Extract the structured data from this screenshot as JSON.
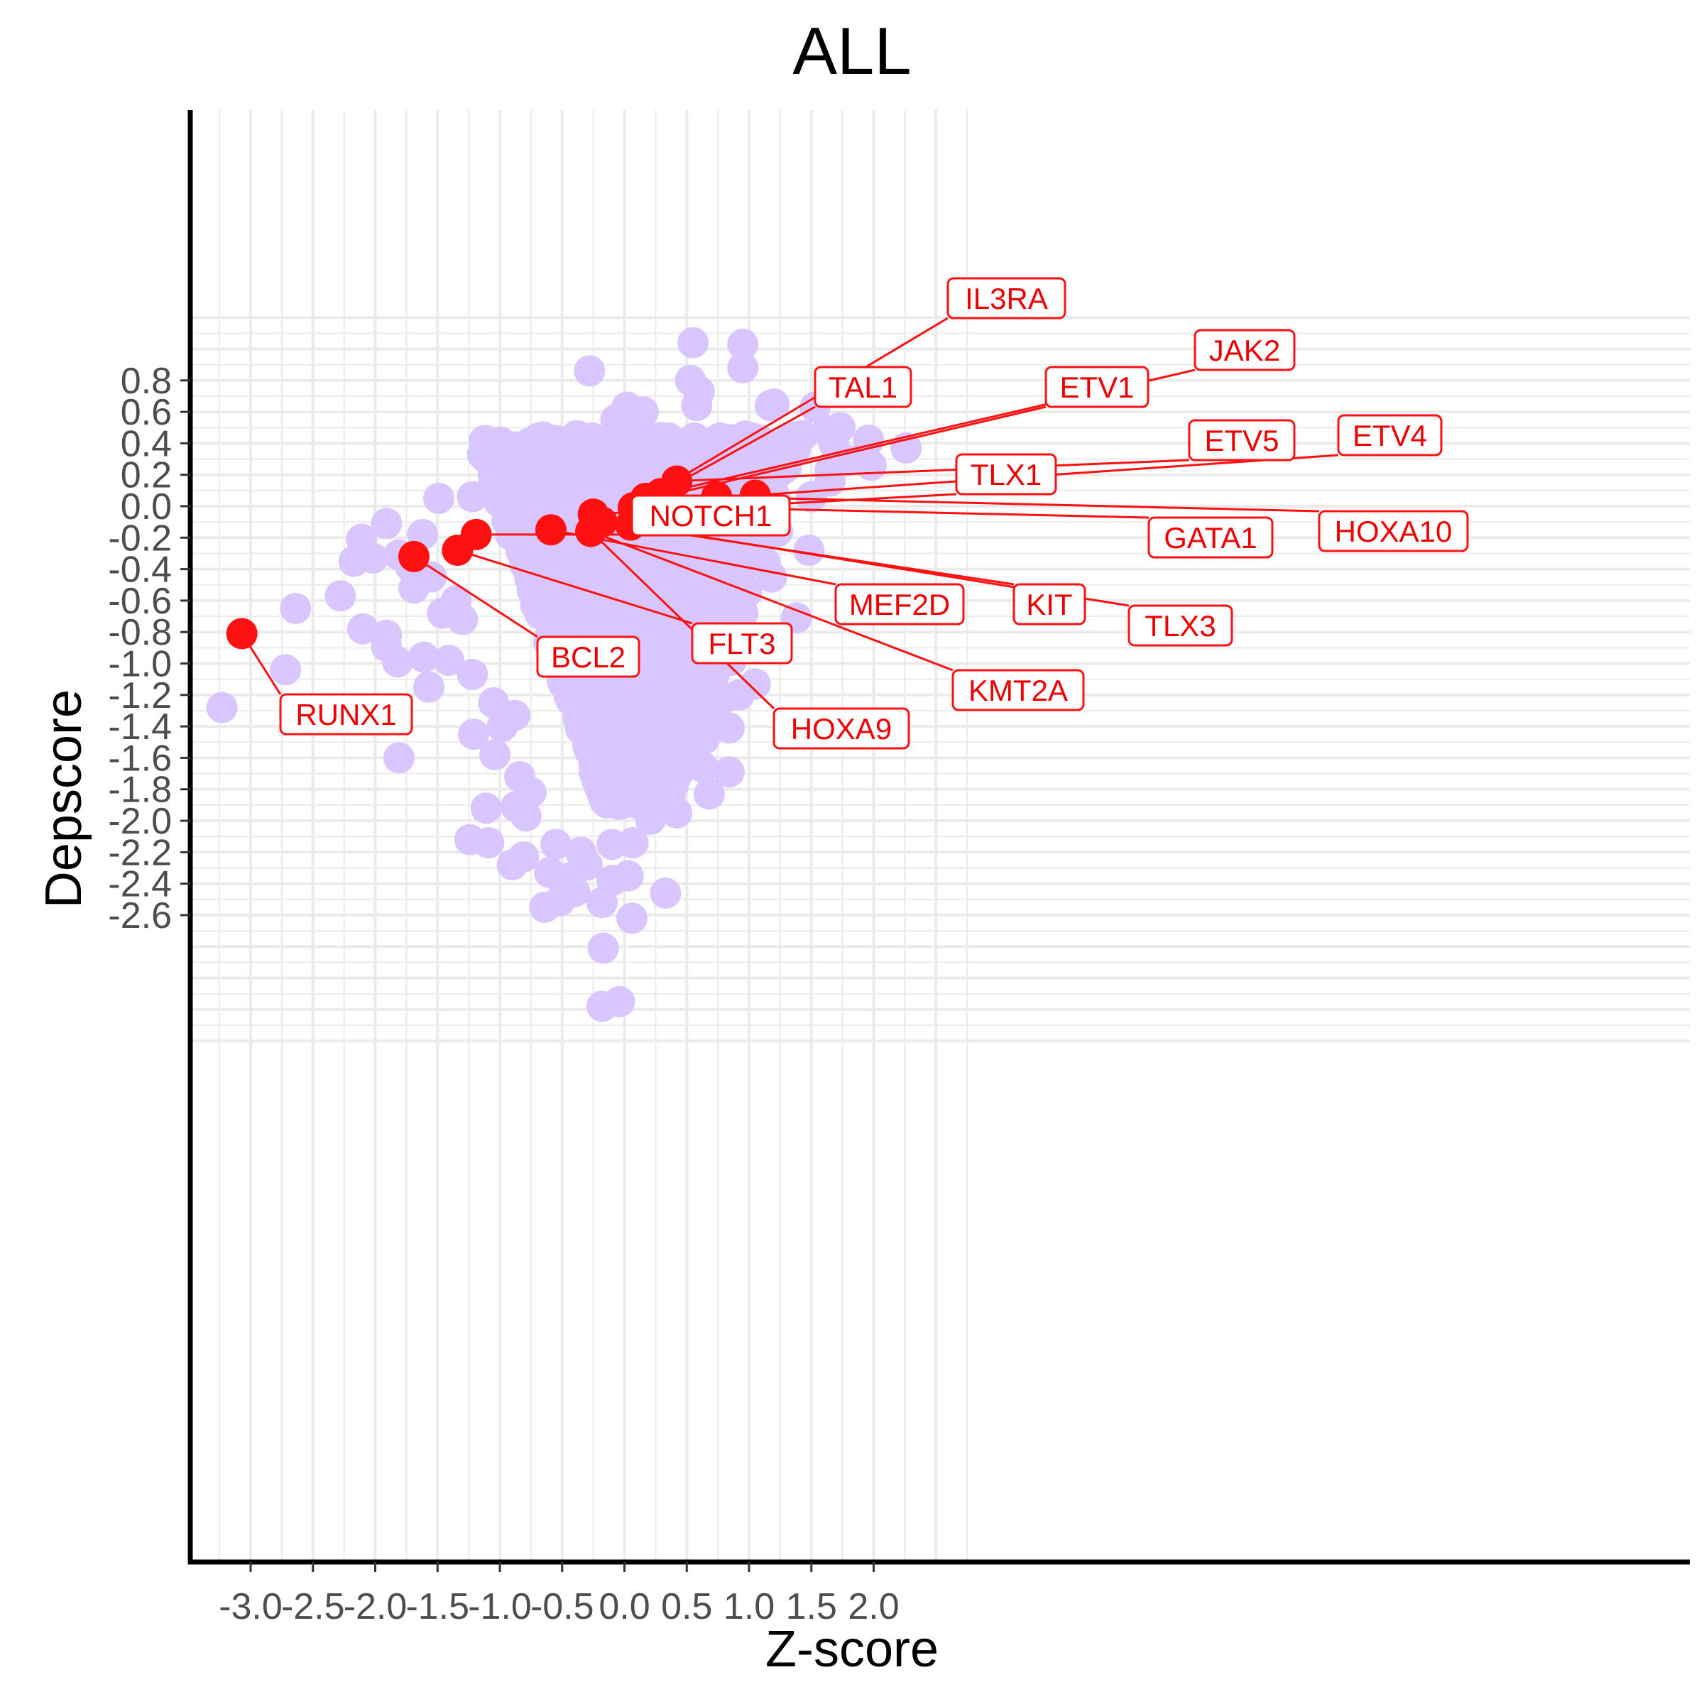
{
  "chart_data": {
    "type": "scatter",
    "title": "ALL",
    "xlabel": "Z-score",
    "ylabel": "Depscore",
    "xlim": [
      -3.35,
      2.75
    ],
    "ylim": [
      -3.35,
      1.27
    ],
    "xticks": [
      -3.0,
      -2.5,
      -2.0,
      -1.5,
      -1.0,
      -0.5,
      0.0,
      0.5,
      1.0,
      1.5,
      2.0
    ],
    "xtick_labels": [
      "-3.0",
      "-2.5",
      "-2.0",
      "-1.5",
      "-1.0",
      "-0.5",
      "0.0",
      "0.5",
      "1.0",
      "1.5",
      "2.0"
    ],
    "yticks": [
      0.8,
      0.6,
      0.4,
      0.2,
      0.0,
      -0.2,
      -0.4,
      -0.6,
      -0.8,
      -1.0,
      -1.2,
      -1.4,
      -1.6,
      -1.8,
      -2.0,
      -2.2,
      -2.4,
      -2.6
    ],
    "ytick_labels": [
      "0.8",
      "0.6",
      "0.4",
      "0.2",
      "0.0",
      "-0.2",
      "-0.4",
      "-0.6",
      "-0.8",
      "-1.0",
      "-1.2",
      "-1.4",
      "-1.6",
      "-1.8",
      "-2.0",
      "-2.2",
      "-2.4",
      "-2.6"
    ],
    "grid": true,
    "colors": {
      "background_points": "#d9c6ff",
      "highlight_points": "#ff1111",
      "label_text": "#ee0000",
      "grid": "#ebebeb",
      "axis": "#000000",
      "tick_label": "#4d4d4d"
    },
    "background_points": [
      {
        "x": 0.55,
        "y": 1.04
      },
      {
        "x": 0.95,
        "y": 1.03
      },
      {
        "x": -0.28,
        "y": 0.86
      },
      {
        "x": 0.95,
        "y": 0.88
      },
      {
        "x": 0.53,
        "y": 0.8
      },
      {
        "x": 0.6,
        "y": 0.73
      },
      {
        "x": 0.58,
        "y": 0.64
      },
      {
        "x": 1.2,
        "y": 0.65
      },
      {
        "x": 1.17,
        "y": 0.64
      },
      {
        "x": 1.53,
        "y": 0.63
      },
      {
        "x": 0.02,
        "y": 0.63
      },
      {
        "x": 0.15,
        "y": 0.6
      },
      {
        "x": -0.07,
        "y": 0.55
      },
      {
        "x": -0.65,
        "y": 0.44
      },
      {
        "x": 1.63,
        "y": 0.48
      },
      {
        "x": 1.73,
        "y": 0.5
      },
      {
        "x": 1.43,
        "y": 0.45
      },
      {
        "x": 1.68,
        "y": 0.4
      },
      {
        "x": 1.96,
        "y": 0.42
      },
      {
        "x": 2.26,
        "y": 0.37
      },
      {
        "x": 1.8,
        "y": 0.29
      },
      {
        "x": 1.98,
        "y": 0.26
      },
      {
        "x": 1.65,
        "y": 0.23
      },
      {
        "x": 1.65,
        "y": 0.16
      },
      {
        "x": 1.27,
        "y": 0.38
      },
      {
        "x": 1.37,
        "y": 0.36
      },
      {
        "x": -0.72,
        "y": 0.21
      },
      {
        "x": -0.93,
        "y": 0.13
      },
      {
        "x": -1.49,
        "y": 0.05
      },
      {
        "x": -1.22,
        "y": 0.06
      },
      {
        "x": -1.91,
        "y": -0.11
      },
      {
        "x": -2.11,
        "y": -0.21
      },
      {
        "x": -2.02,
        "y": -0.33
      },
      {
        "x": -2.17,
        "y": -0.35
      },
      {
        "x": -1.81,
        "y": -0.31
      },
      {
        "x": -1.72,
        "y": -0.38
      },
      {
        "x": -1.69,
        "y": -0.52
      },
      {
        "x": -2.28,
        "y": -0.57
      },
      {
        "x": -2.64,
        "y": -0.65
      },
      {
        "x": -2.1,
        "y": -0.78
      },
      {
        "x": -1.91,
        "y": -0.82
      },
      {
        "x": -1.91,
        "y": -0.89
      },
      {
        "x": -1.82,
        "y": -0.99
      },
      {
        "x": -2.72,
        "y": -1.04
      },
      {
        "x": -3.23,
        "y": -1.28
      },
      {
        "x": -1.81,
        "y": -1.6
      },
      {
        "x": -1.57,
        "y": -1.15
      },
      {
        "x": -1.61,
        "y": -0.96
      },
      {
        "x": -1.41,
        "y": -0.98
      },
      {
        "x": -1.46,
        "y": -0.68
      },
      {
        "x": -1.22,
        "y": -1.07
      },
      {
        "x": -1.21,
        "y": -1.45
      },
      {
        "x": -1.04,
        "y": -1.58
      },
      {
        "x": -1.11,
        "y": -1.92
      },
      {
        "x": -1.24,
        "y": -2.12
      },
      {
        "x": -1.09,
        "y": -2.14
      },
      {
        "x": -0.9,
        "y": -2.28
      },
      {
        "x": -0.81,
        "y": -2.23
      },
      {
        "x": -0.87,
        "y": -1.91
      },
      {
        "x": -0.79,
        "y": -1.97
      },
      {
        "x": -0.84,
        "y": -1.72
      },
      {
        "x": -0.6,
        "y": -2.33
      },
      {
        "x": -0.52,
        "y": -2.51
      },
      {
        "x": -0.64,
        "y": -2.55
      },
      {
        "x": -0.43,
        "y": -2.36
      },
      {
        "x": -0.3,
        "y": -2.28
      },
      {
        "x": -0.18,
        "y": -2.52
      },
      {
        "x": 0.06,
        "y": -2.62
      },
      {
        "x": -0.17,
        "y": -2.81
      },
      {
        "x": -0.04,
        "y": -3.15
      },
      {
        "x": -0.18,
        "y": -3.18
      },
      {
        "x": 0.33,
        "y": -2.46
      },
      {
        "x": 0.03,
        "y": -2.35
      },
      {
        "x": -0.1,
        "y": -2.38
      },
      {
        "x": 0.07,
        "y": -2.14
      },
      {
        "x": -0.1,
        "y": -2.15
      },
      {
        "x": 0.21,
        "y": -1.99
      },
      {
        "x": 0.42,
        "y": -1.95
      },
      {
        "x": 0.5,
        "y": -1.63
      },
      {
        "x": 0.63,
        "y": -1.66
      },
      {
        "x": 0.68,
        "y": -1.83
      },
      {
        "x": 0.64,
        "y": -1.48
      },
      {
        "x": 0.84,
        "y": -1.41
      },
      {
        "x": 0.84,
        "y": -1.69
      },
      {
        "x": 0.8,
        "y": -1.22
      },
      {
        "x": 0.92,
        "y": -1.2
      },
      {
        "x": 1.05,
        "y": -1.13
      },
      {
        "x": 0.86,
        "y": -0.98
      },
      {
        "x": 0.92,
        "y": -0.9
      },
      {
        "x": 0.92,
        "y": -0.73
      },
      {
        "x": 0.95,
        "y": -0.68
      },
      {
        "x": 0.98,
        "y": -0.55
      },
      {
        "x": 1.13,
        "y": -0.36
      },
      {
        "x": 1.18,
        "y": -0.45
      },
      {
        "x": 1.38,
        "y": -0.71
      },
      {
        "x": 1.48,
        "y": -0.28
      },
      {
        "x": 1.23,
        "y": -0.16
      },
      {
        "x": 1.5,
        "y": 0.06
      },
      {
        "x": 1.65,
        "y": 0.48
      },
      {
        "x": 0.85,
        "y": -0.35
      },
      {
        "x": 0.7,
        "y": -1.3
      },
      {
        "x": 0.55,
        "y": -1.27
      },
      {
        "x": 0.45,
        "y": -1.55
      },
      {
        "x": 0.3,
        "y": -1.8
      },
      {
        "x": -0.55,
        "y": -2.15
      },
      {
        "x": -0.4,
        "y": -2.45
      },
      {
        "x": -0.35,
        "y": -2.2
      },
      {
        "x": -0.75,
        "y": -1.82
      },
      {
        "x": -0.98,
        "y": -1.4
      },
      {
        "x": -1.05,
        "y": -1.25
      },
      {
        "x": -0.88,
        "y": -1.33
      },
      {
        "x": -1.3,
        "y": -0.72
      },
      {
        "x": -1.35,
        "y": -0.6
      },
      {
        "x": -1.55,
        "y": -0.45
      },
      {
        "x": -1.62,
        "y": -0.18
      },
      {
        "x": -1.05,
        "y": 0.15
      },
      {
        "x": -0.15,
        "y": 0.38
      },
      {
        "x": 0.05,
        "y": 0.4
      },
      {
        "x": 0.35,
        "y": 0.42
      },
      {
        "x": 0.85,
        "y": 0.38
      },
      {
        "x": 1.05,
        "y": 0.32
      },
      {
        "x": 1.3,
        "y": 0.25
      },
      {
        "x": 1.05,
        "y": 0.1
      },
      {
        "x": 0.75,
        "y": 0.25
      }
    ],
    "highlighted_genes": [
      {
        "name": "RUNX1",
        "x": -3.07,
        "y": -0.81
      },
      {
        "name": "BCL2",
        "x": -1.69,
        "y": -0.32
      },
      {
        "name": "FLT3",
        "x": -1.34,
        "y": -0.28
      },
      {
        "name": "NOTCH1",
        "x": -1.19,
        "y": -0.18
      },
      {
        "name": "MEF2D",
        "x": -0.59,
        "y": -0.15
      },
      {
        "name": "HOXA9",
        "x": -0.27,
        "y": -0.16
      },
      {
        "name": "KMT2A",
        "x": -0.27,
        "y": -0.16
      },
      {
        "name": "TLX1",
        "x": -0.25,
        "y": -0.05
      },
      {
        "name": "KIT",
        "x": -0.18,
        "y": -0.1
      },
      {
        "name": "TAL1",
        "x": 0.07,
        "y": -0.01
      },
      {
        "name": "TLX3",
        "x": 0.05,
        "y": -0.12
      },
      {
        "name": "IL3RA",
        "x": 0.17,
        "y": 0.05
      },
      {
        "name": "ETV1",
        "x": 0.19,
        "y": 0.04
      },
      {
        "name": "GATA1",
        "x": 0.23,
        "y": 0.0
      },
      {
        "name": "JAK2",
        "x": 0.29,
        "y": 0.08
      },
      {
        "name": "ETV5",
        "x": 0.42,
        "y": 0.16
      },
      {
        "name": "HOXA10",
        "x": 0.74,
        "y": 0.06
      },
      {
        "name": "ETV4",
        "x": 1.05,
        "y": 0.07
      }
    ]
  }
}
